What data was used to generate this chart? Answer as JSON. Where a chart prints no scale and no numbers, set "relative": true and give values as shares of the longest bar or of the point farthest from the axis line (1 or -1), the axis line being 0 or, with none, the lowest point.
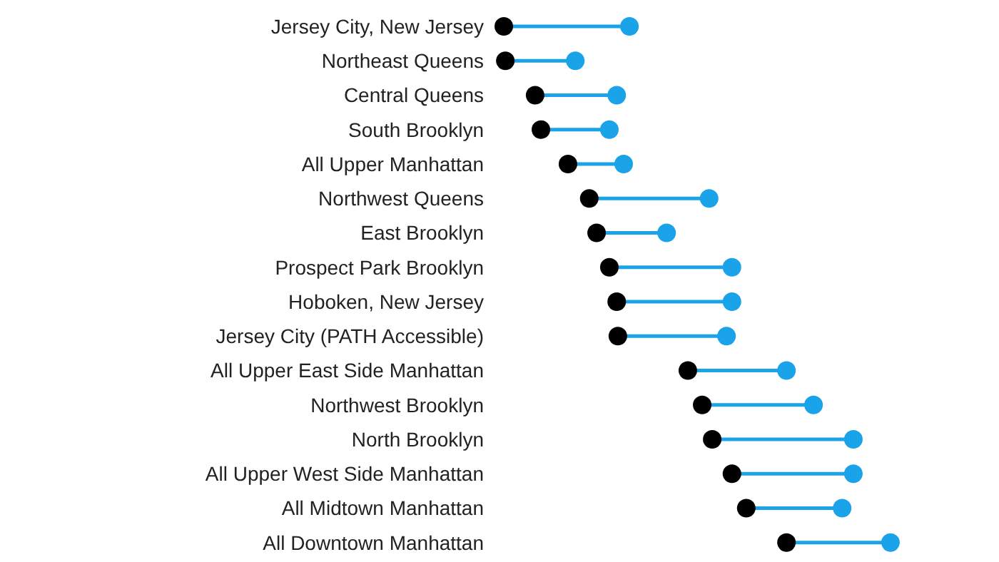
{
  "chart_data": {
    "type": "scatter",
    "relative": true,
    "orientation": "horizontal",
    "marker": "circle",
    "categories": [
      "Jersey City, New Jersey",
      "Northeast Queens",
      "Central Queens",
      "South Brooklyn",
      "All Upper Manhattan",
      "Northwest Queens",
      "East Brooklyn",
      "Prospect Park Brooklyn",
      "Hoboken, New Jersey",
      "Jersey City (PATH Accessible)",
      "All Upper East Side Manhattan",
      "Northwest Brooklyn",
      "North Brooklyn",
      "All Upper West Side Manhattan",
      "All Midtown Manhattan",
      "All Downtown Manhattan"
    ],
    "series": [
      {
        "color": "#000000",
        "values": [
          0.0,
          0.004,
          0.081,
          0.096,
          0.166,
          0.221,
          0.24,
          0.273,
          0.292,
          0.295,
          0.476,
          0.513,
          0.539,
          0.59,
          0.627,
          0.731
        ]
      },
      {
        "color": "#1aa3e8",
        "values": [
          0.325,
          0.185,
          0.292,
          0.273,
          0.31,
          0.531,
          0.421,
          0.59,
          0.59,
          0.576,
          0.731,
          0.801,
          0.904,
          0.904,
          0.875,
          1.0
        ]
      }
    ]
  }
}
